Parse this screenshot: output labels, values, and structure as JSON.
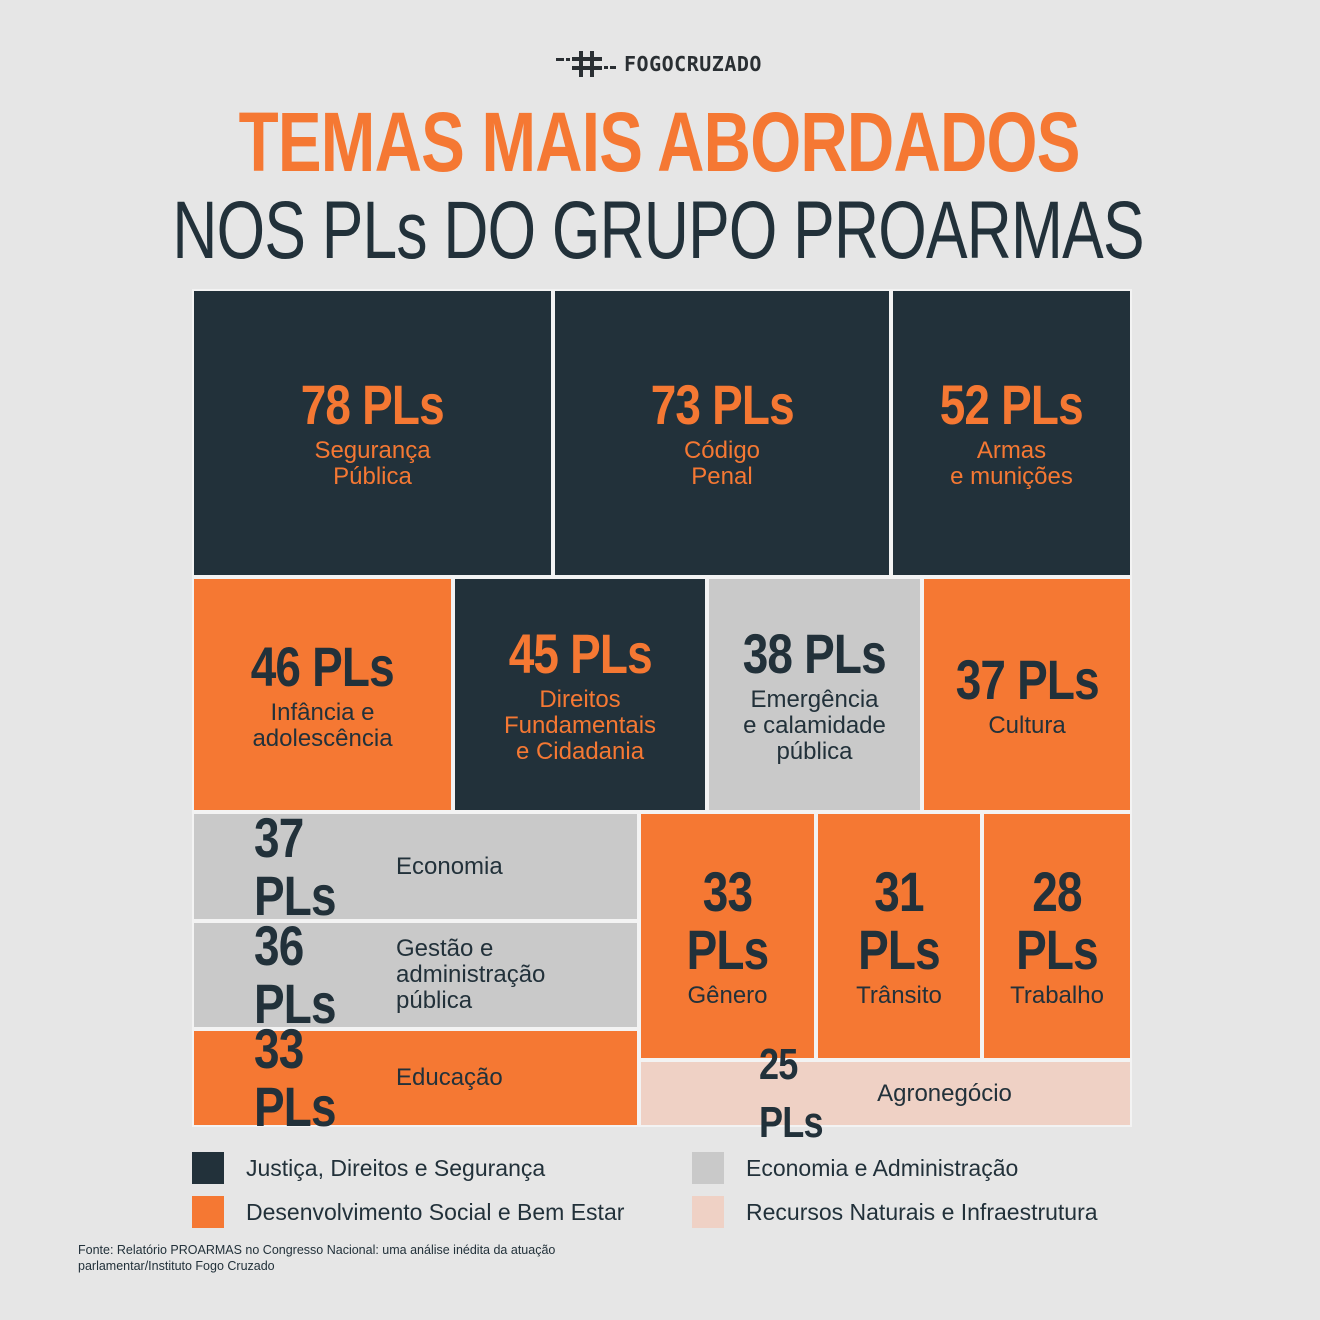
{
  "brand": {
    "logo_text": "FOGOCRUZADO",
    "logo_icon": "hash-crosshair-icon"
  },
  "title": {
    "line1": "TEMAS MAIS ABORDADOS",
    "line2": "NOS PLs DO GRUPO PROARMAS"
  },
  "colors": {
    "justica": "#22313a",
    "desenvolvimento": "#f57833",
    "economia": "#c9c9c9",
    "recursos": "#efd1c5",
    "background": "#e6e6e6"
  },
  "chart_data": {
    "type": "treemap",
    "unit": "PLs",
    "items": [
      {
        "value_label": "78 PLs",
        "value": 78,
        "label": "Segurança\nPública",
        "category": "justica"
      },
      {
        "value_label": "73 PLs",
        "value": 73,
        "label": "Código\nPenal",
        "category": "justica"
      },
      {
        "value_label": "52 PLs",
        "value": 52,
        "label": "Armas\ne munições",
        "category": "justica"
      },
      {
        "value_label": "46 PLs",
        "value": 46,
        "label": "Infância e\nadolescência",
        "category": "desenvolvimento"
      },
      {
        "value_label": "45 PLs",
        "value": 45,
        "label": "Direitos\nFundamentais\ne Cidadania",
        "category": "justica"
      },
      {
        "value_label": "38 PLs",
        "value": 38,
        "label": "Emergência\ne calamidade\npública",
        "category": "economia"
      },
      {
        "value_label": "37 PLs",
        "value": 37,
        "label": "Cultura",
        "category": "desenvolvimento"
      },
      {
        "value_label": "37 PLs",
        "value": 37,
        "label": "Economia",
        "category": "economia"
      },
      {
        "value_label": "36 PLs",
        "value": 36,
        "label": "Gestão e\nadministração\npública",
        "category": "economia"
      },
      {
        "value_label": "33 PLs",
        "value": 33,
        "label": "Educação",
        "category": "desenvolvimento"
      },
      {
        "value_label": "33 PLs",
        "value": 33,
        "label": "Gênero",
        "category": "desenvolvimento"
      },
      {
        "value_label": "31 PLs",
        "value": 31,
        "label": "Trânsito",
        "category": "desenvolvimento"
      },
      {
        "value_label": "28 PLs",
        "value": 28,
        "label": "Trabalho",
        "category": "desenvolvimento"
      },
      {
        "value_label": "25 PLs",
        "value": 25,
        "label": "Agronegócio",
        "category": "recursos"
      }
    ]
  },
  "legend": [
    {
      "key": "justica",
      "label": "Justiça, Direitos e Segurança"
    },
    {
      "key": "economia",
      "label": "Economia e Administração"
    },
    {
      "key": "desenvolvimento",
      "label": "Desenvolvimento Social e Bem Estar"
    },
    {
      "key": "recursos",
      "label": "Recursos Naturais e Infraestrutura"
    }
  ],
  "source": "Fonte: Relatório PROARMAS no Congresso Nacional: uma análise inédita da atuação parlamentar/Instituto Fogo Cruzado"
}
